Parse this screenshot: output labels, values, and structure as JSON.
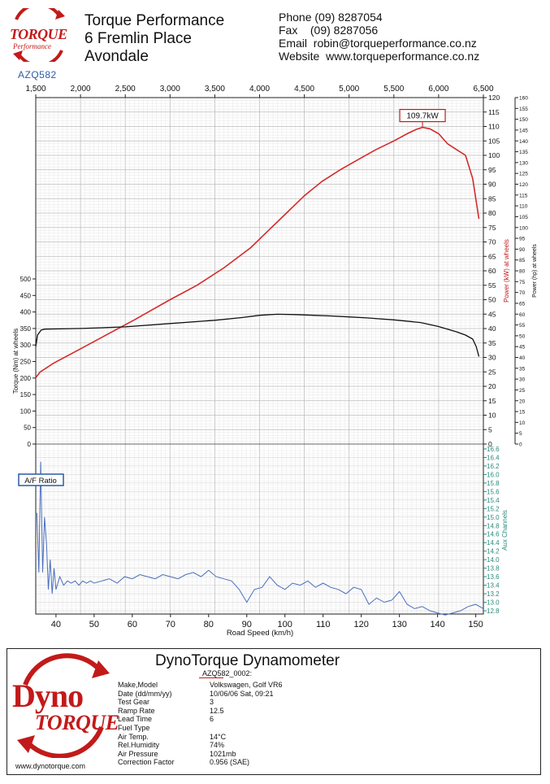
{
  "header": {
    "logo_line1": "TORQUE",
    "logo_line2": "Performance",
    "name_lines": [
      "Torque Performance",
      "6 Fremlin Place",
      "Avondale"
    ],
    "phone": "Phone (09) 8287054",
    "fax": "Fax    (09) 8287056",
    "email": "Email  robin@torqueperformance.co.nz",
    "website": "Website  www.torqueperformance.co.nz",
    "run_id": "AZQ582"
  },
  "chart_data": {
    "type": "line",
    "top_axis": {
      "label": "",
      "ticks": [
        "1,500",
        "2,000",
        "2,500",
        "3,000",
        "3,500",
        "4,000",
        "4,500",
        "5,000",
        "5,500",
        "6,000",
        "6,500"
      ],
      "range": [
        1500,
        6500
      ]
    },
    "bottom_axis": {
      "label": "Road Speed (km/h)",
      "ticks": [
        "40",
        "50",
        "60",
        "70",
        "80",
        "90",
        "100",
        "110",
        "120",
        "130",
        "140",
        "150"
      ],
      "range": [
        34.7,
        152
      ]
    },
    "torque_axis": {
      "label": "Torque (Nm) at wheels",
      "ticks": [
        "0",
        "50",
        "100",
        "150",
        "200",
        "250",
        "300",
        "350",
        "400",
        "450",
        "500"
      ],
      "range": [
        0,
        500
      ]
    },
    "power_kw_axis": {
      "label": "Power (kW) at wheels",
      "ticks": [
        "0",
        "5",
        "10",
        "15",
        "20",
        "25",
        "30",
        "35",
        "40",
        "45",
        "50",
        "55",
        "60",
        "65",
        "70",
        "75",
        "80",
        "85",
        "90",
        "95",
        "100",
        "105",
        "110",
        "115",
        "120"
      ],
      "range": [
        0,
        120
      ]
    },
    "power_hp_axis": {
      "label": "Power (hp) at wheels",
      "ticks": [
        "0",
        "5",
        "10",
        "15",
        "20",
        "25",
        "30",
        "35",
        "40",
        "45",
        "50",
        "55",
        "60",
        "65",
        "70",
        "75",
        "80",
        "85",
        "90",
        "95",
        "100",
        "105",
        "110",
        "115",
        "120",
        "125",
        "130",
        "135",
        "140",
        "145",
        "150",
        "155",
        "160"
      ],
      "range": [
        0,
        160
      ]
    },
    "aux_axis": {
      "label": "Aux Channels",
      "ticks": [
        "12.8",
        "13.0",
        "13.2",
        "13.4",
        "13.6",
        "13.8",
        "14.0",
        "14.2",
        "14.4",
        "14.6",
        "14.8",
        "15.0",
        "15.2",
        "15.4",
        "15.6",
        "15.8",
        "16.0",
        "16.2",
        "16.4",
        "16.6"
      ],
      "range": [
        12.7,
        16.6
      ]
    },
    "peak_label": "109.7kW",
    "afr_label": "A/F Ratio",
    "series": [
      {
        "name": "Power (kW) at wheels",
        "color": "#d42a2a",
        "x_rpm": [
          1500,
          1550,
          1700,
          2000,
          2300,
          2600,
          3000,
          3300,
          3600,
          3900,
          4100,
          4300,
          4500,
          4700,
          4900,
          5100,
          5300,
          5500,
          5650,
          5750,
          5820,
          5900,
          6000,
          6100,
          6200,
          6300,
          6380,
          6420,
          6450
        ],
        "y": [
          23,
          25,
          28,
          33,
          38,
          43,
          50,
          55,
          61,
          68,
          74,
          80,
          86,
          91,
          95,
          98.5,
          102,
          105,
          107.5,
          109,
          109.7,
          109.2,
          107.5,
          104,
          102,
          100,
          92,
          84,
          78
        ]
      },
      {
        "name": "Torque (Nm) at wheels",
        "color": "#111111",
        "x_rpm": [
          1500,
          1520,
          1560,
          1600,
          2000,
          2500,
          3000,
          3500,
          3800,
          4000,
          4200,
          4400,
          4600,
          4800,
          5000,
          5200,
          5500,
          5800,
          6000,
          6200,
          6300,
          6380,
          6420,
          6450
        ],
        "y": [
          295,
          330,
          345,
          348,
          350,
          355,
          365,
          375,
          383,
          390,
          393,
          392,
          390,
          388,
          385,
          382,
          376,
          368,
          356,
          340,
          330,
          318,
          295,
          265
        ]
      },
      {
        "name": "A/F Ratio",
        "color": "#4a6ec0",
        "x_kmh": [
          35,
          35.5,
          36,
          36.5,
          37,
          37.5,
          38,
          38.5,
          39,
          39.5,
          40,
          41,
          42,
          43,
          44,
          45,
          46,
          47,
          48,
          49,
          50,
          52,
          54,
          56,
          58,
          60,
          62,
          64,
          66,
          68,
          70,
          72,
          74,
          76,
          78,
          80,
          82,
          84,
          86,
          88,
          90,
          92,
          94,
          96,
          98,
          100,
          102,
          104,
          106,
          108,
          110,
          112,
          114,
          116,
          118,
          120,
          122,
          124,
          126,
          128,
          130,
          132,
          134,
          136,
          138,
          140,
          142,
          144,
          146,
          148,
          150,
          152
        ],
        "y": [
          15.1,
          13.7,
          16.3,
          13.7,
          15.0,
          14.4,
          13.3,
          14.0,
          13.2,
          13.8,
          13.3,
          13.6,
          13.4,
          13.5,
          13.45,
          13.5,
          13.4,
          13.5,
          13.45,
          13.5,
          13.45,
          13.5,
          13.55,
          13.45,
          13.6,
          13.55,
          13.65,
          13.6,
          13.55,
          13.65,
          13.6,
          13.55,
          13.65,
          13.7,
          13.6,
          13.75,
          13.6,
          13.55,
          13.5,
          13.3,
          13.0,
          13.3,
          13.35,
          13.6,
          13.4,
          13.3,
          13.45,
          13.4,
          13.5,
          13.35,
          13.45,
          13.35,
          13.3,
          13.2,
          13.35,
          13.3,
          12.95,
          13.1,
          13.0,
          13.05,
          13.25,
          12.95,
          12.85,
          12.9,
          12.8,
          12.75,
          12.7,
          12.75,
          12.8,
          12.9,
          12.95,
          12.85
        ]
      }
    ]
  },
  "footer": {
    "title": "DynoTorque Dynamometer",
    "logo_top": "Dyno",
    "logo_bottom": "TORQUE",
    "website": "www.dynotorque.com",
    "run_name": "AZQ582_0002:",
    "fields": [
      {
        "label": "Make,Model",
        "value": "Volkswagen, Golf VR6"
      },
      {
        "label": "Date (dd/mm/yy)",
        "value": "10/06/06 Sat, 09:21"
      },
      {
        "label": "Test Gear",
        "value": "3"
      },
      {
        "label": "Ramp Rate",
        "value": "12.5"
      },
      {
        "label": "Lead Time",
        "value": "6"
      },
      {
        "label": "Fuel Type",
        "value": ""
      },
      {
        "label": "Air Temp.",
        "value": "14°C"
      },
      {
        "label": "Rel.Humidity",
        "value": "74%"
      },
      {
        "label": "Air Pressure",
        "value": "1021mb"
      },
      {
        "label": "Correction Factor",
        "value": "0.956 (SAE)"
      }
    ]
  }
}
